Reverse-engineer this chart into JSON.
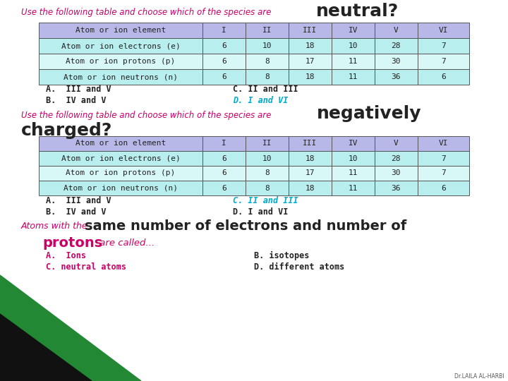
{
  "bg_color": "#ffffff",
  "header_color": "#b8b8e8",
  "row1_color": "#b8eeee",
  "row2_color": "#d8f8f8",
  "row3_color": "#b8eeee",
  "border_color": "#555555",
  "text_color_dark": "#cc0066",
  "text_color_cyan": "#00aacc",
  "text_color_black": "#222222",
  "title1_normal": "Use the following table and choose which of the species are ",
  "title1_big": "neutral",
  "title1_suffix": "?",
  "table_headers": [
    "Atom or ion element",
    "I",
    "II",
    "III",
    "IV",
    "V",
    "VI"
  ],
  "table_rows": [
    [
      "Atom or ion electrons (e)",
      "6",
      "10",
      "18",
      "10",
      "28",
      "7"
    ],
    [
      "Atom or ion protons (p)",
      "6",
      "8",
      "17",
      "11",
      "30",
      "7"
    ],
    [
      "Atom or ion neutrons (n)",
      "6",
      "8",
      "18",
      "11",
      "36",
      "6"
    ]
  ],
  "q1_answers": [
    [
      "A.  III and V",
      "#222222",
      "C. II and III",
      "#222222"
    ],
    [
      "B.  IV and V",
      "#222222",
      "D. I and VI",
      "#00aacc"
    ]
  ],
  "title2_normal": "Use the following table and choose which of the species are ",
  "title2_big1": "negatively",
  "title2_big2": "charged",
  "title2_suffix": "?",
  "q2_answers": [
    [
      "A.  III and V",
      "#222222",
      "C. II and III",
      "#00aacc"
    ],
    [
      "B.  IV and V",
      "#222222",
      "D. I and VI",
      "#222222"
    ]
  ],
  "bottom_line1_prefix": "Atoms with the ",
  "bottom_line1_big": "same number of electrons and number of",
  "bottom_line2_big": "protons",
  "bottom_line2_suffix": " are called...",
  "bottom_answers": [
    [
      "A.  Ions",
      "#cc0066",
      "B. isotopes",
      "#222222"
    ],
    [
      "C. neutral atoms",
      "#cc0066",
      "D. different atoms",
      "#222222"
    ]
  ],
  "green_triangle_color": "#228833",
  "black_triangle_color": "#111111",
  "watermark": "Dr.LAILA AL-HARBI"
}
